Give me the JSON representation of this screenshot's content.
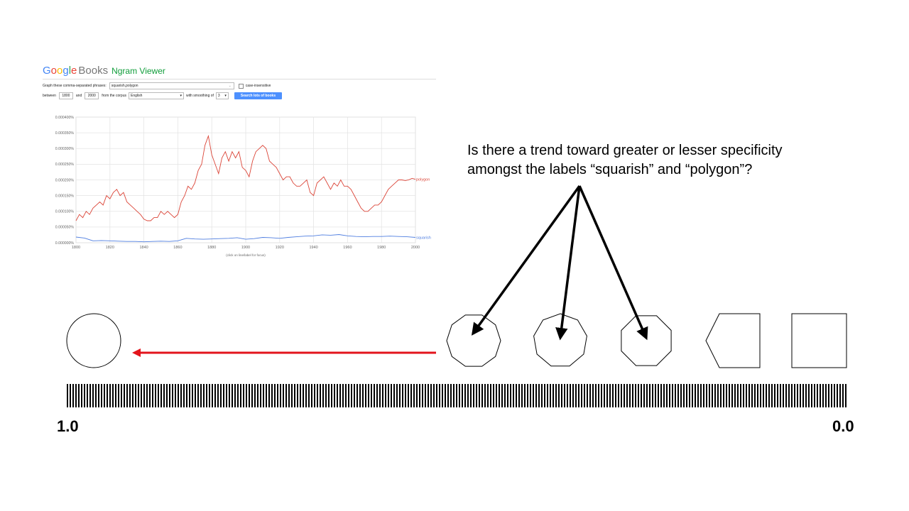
{
  "ngram": {
    "logo": {
      "g1": "G",
      "g2": "o",
      "g3": "o",
      "g4": "g",
      "g5": "l",
      "g6": "e",
      "books": "Books",
      "viewer": "Ngram Viewer"
    },
    "phrases_label": "Graph these comma-separated phrases:",
    "phrases_value": "squarish,polygon",
    "case_insensitive_label": "case-insensitive",
    "between_label": "between",
    "start_year": "1800",
    "and_label": "and",
    "end_year": "2000",
    "corpus_label": "from the corpus",
    "corpus_value": "English",
    "smoothing_label": "with smoothing of",
    "smoothing_value": "3",
    "search_button": "Search lots of books",
    "hint": "(click on line/label for focus)",
    "colors": {
      "polygon": "#db4437",
      "squarish": "#4f7ee0"
    }
  },
  "chart_data": {
    "type": "line",
    "title": "",
    "xlabel": "",
    "ylabel": "",
    "xlim": [
      1800,
      2000
    ],
    "ylim": [
      0,
      0.0004
    ],
    "x_ticks": [
      "1800",
      "1820",
      "1840",
      "1860",
      "1880",
      "1900",
      "1920",
      "1940",
      "1960",
      "1980",
      "2000"
    ],
    "y_ticks": [
      "0.000000%",
      "0.000050%",
      "0.000100%",
      "0.000150%",
      "0.000200%",
      "0.000250%",
      "0.000300%",
      "0.000350%",
      "0.000400%"
    ],
    "grid": true,
    "series": [
      {
        "name": "polygon",
        "color": "#db4437",
        "x": [
          1800,
          1802,
          1804,
          1806,
          1808,
          1810,
          1812,
          1814,
          1816,
          1818,
          1820,
          1822,
          1824,
          1826,
          1828,
          1830,
          1832,
          1834,
          1836,
          1838,
          1840,
          1842,
          1844,
          1846,
          1848,
          1850,
          1852,
          1854,
          1856,
          1858,
          1860,
          1862,
          1864,
          1866,
          1868,
          1870,
          1872,
          1874,
          1876,
          1878,
          1880,
          1882,
          1884,
          1886,
          1888,
          1890,
          1892,
          1894,
          1896,
          1898,
          1900,
          1902,
          1904,
          1906,
          1908,
          1910,
          1912,
          1914,
          1916,
          1918,
          1920,
          1922,
          1924,
          1926,
          1928,
          1930,
          1932,
          1934,
          1936,
          1938,
          1940,
          1942,
          1944,
          1946,
          1948,
          1950,
          1952,
          1954,
          1956,
          1958,
          1960,
          1962,
          1964,
          1966,
          1968,
          1970,
          1972,
          1974,
          1976,
          1978,
          1980,
          1982,
          1984,
          1986,
          1988,
          1990,
          1992,
          1994,
          1996,
          1998,
          2000
        ],
        "values": [
          7e-05,
          9e-05,
          8e-05,
          0.0001,
          9e-05,
          0.00011,
          0.00012,
          0.00013,
          0.00012,
          0.00015,
          0.00014,
          0.00016,
          0.00017,
          0.00015,
          0.00016,
          0.00013,
          0.00012,
          0.00011,
          0.0001,
          9e-05,
          7.5e-05,
          7e-05,
          7e-05,
          8e-05,
          8e-05,
          0.0001,
          9e-05,
          0.0001,
          9e-05,
          8e-05,
          9e-05,
          0.00013,
          0.00015,
          0.00018,
          0.00017,
          0.00019,
          0.00023,
          0.00025,
          0.00031,
          0.00034,
          0.00028,
          0.00025,
          0.00022,
          0.00027,
          0.00029,
          0.00026,
          0.00029,
          0.00027,
          0.00029,
          0.00024,
          0.00023,
          0.00021,
          0.00026,
          0.00029,
          0.0003,
          0.00031,
          0.0003,
          0.00026,
          0.00025,
          0.00024,
          0.00022,
          0.0002,
          0.00021,
          0.00021,
          0.00019,
          0.00018,
          0.00018,
          0.00019,
          0.0002,
          0.00016,
          0.00015,
          0.00019,
          0.0002,
          0.00021,
          0.00019,
          0.00017,
          0.00019,
          0.00018,
          0.0002,
          0.00018,
          0.00018,
          0.00017,
          0.00015,
          0.00013,
          0.00011,
          0.0001,
          0.0001,
          0.00011,
          0.00012,
          0.00012,
          0.00013,
          0.00015,
          0.00017,
          0.00018,
          0.00019,
          0.0002,
          0.0002,
          0.000198,
          0.0002,
          0.000205,
          0.000202
        ]
      },
      {
        "name": "squarish",
        "color": "#4f7ee0",
        "x": [
          1800,
          1805,
          1810,
          1815,
          1820,
          1825,
          1830,
          1835,
          1840,
          1845,
          1850,
          1855,
          1860,
          1865,
          1870,
          1875,
          1880,
          1885,
          1890,
          1895,
          1900,
          1905,
          1910,
          1915,
          1920,
          1925,
          1930,
          1935,
          1940,
          1945,
          1950,
          1955,
          1960,
          1965,
          1970,
          1975,
          1980,
          1985,
          1990,
          1995,
          2000
        ],
        "values": [
          1.8e-05,
          1.5e-05,
          6e-06,
          7e-06,
          6e-06,
          5e-06,
          4e-06,
          4e-06,
          3e-06,
          4e-06,
          5e-06,
          4e-06,
          6e-06,
          1.4e-05,
          1.2e-05,
          1.1e-05,
          1.2e-05,
          1.3e-05,
          1.4e-05,
          1.6e-05,
          1.1e-05,
          1.3e-05,
          1.7e-05,
          1.6e-05,
          1.4e-05,
          1.7e-05,
          1.9e-05,
          2.1e-05,
          2.2e-05,
          2.5e-05,
          2.4e-05,
          2.6e-05,
          2.2e-05,
          2e-05,
          1.9e-05,
          2e-05,
          2e-05,
          2.1e-05,
          2e-05,
          1.9e-05,
          1.7e-05
        ]
      }
    ]
  },
  "slide": {
    "question_line1": "Is there a trend toward greater or lesser specificity",
    "question_line2": "amongst the labels “squarish” and “polygon”?",
    "scale_left": "1.0",
    "scale_right": "0.0",
    "shapes": [
      "circle",
      "decagon",
      "nonagon",
      "octagon",
      "hexagon",
      "square"
    ],
    "colors": {
      "arrow_red": "#e3141c",
      "ink": "#000000"
    }
  }
}
